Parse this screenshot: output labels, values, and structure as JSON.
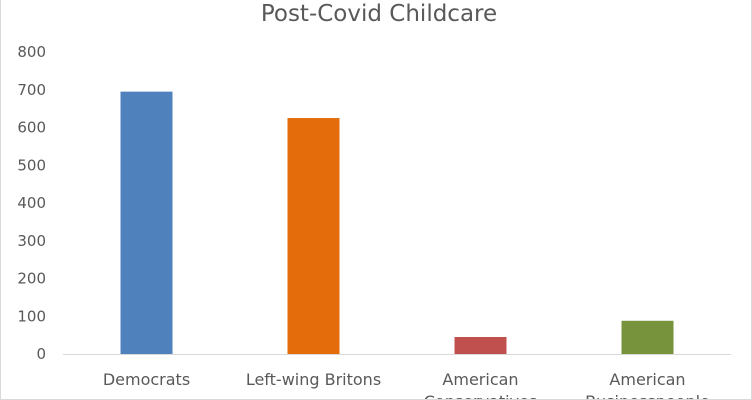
{
  "chart_data": {
    "type": "bar",
    "title": "Post-Covid Childcare",
    "xlabel": "",
    "ylabel": "",
    "ylim": [
      0,
      800
    ],
    "yticks": [
      0,
      100,
      200,
      300,
      400,
      500,
      600,
      700,
      800
    ],
    "grid": false,
    "legend": "none",
    "categories": [
      {
        "line1": "Democrats",
        "line2": ""
      },
      {
        "line1": "Left-wing Britons",
        "line2": ""
      },
      {
        "line1": "American",
        "line2": "Conservatives"
      },
      {
        "line1": "American",
        "line2": "Businesspeople"
      }
    ],
    "values": [
      695,
      625,
      45,
      88
    ],
    "colors": [
      "#4f81bd",
      "#e46c0a",
      "#c0504d",
      "#77933c"
    ]
  }
}
